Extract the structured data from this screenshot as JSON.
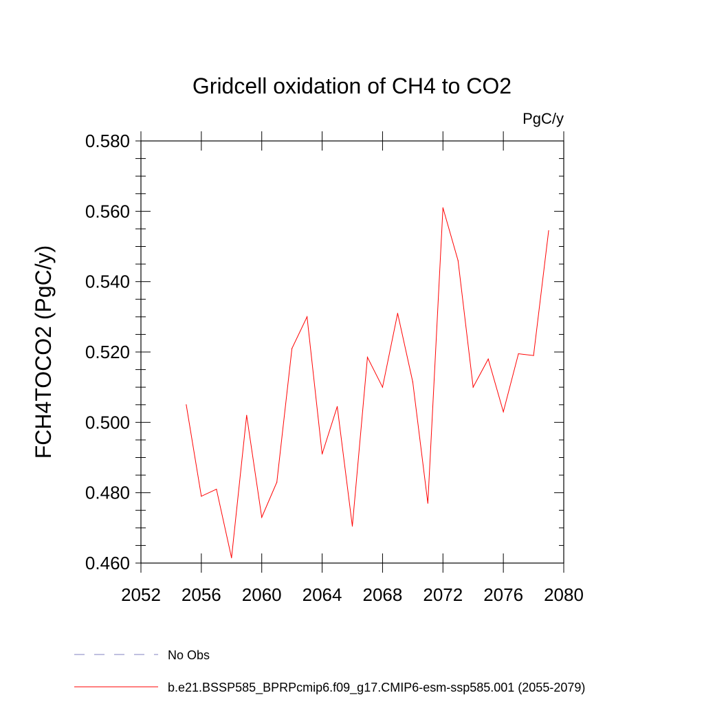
{
  "chart_data": {
    "type": "line",
    "title": "Gridcell oxidation of CH4 to CO2",
    "units_label": "PgC/y",
    "xlabel": "",
    "ylabel": "FCH4TOCO2  (PgC/y)",
    "xlim": [
      2052,
      2080
    ],
    "ylim": [
      0.46,
      0.58
    ],
    "x_ticks": [
      2052,
      2056,
      2060,
      2064,
      2068,
      2072,
      2076,
      2080
    ],
    "x_tick_labels": [
      "2052",
      "2056",
      "2060",
      "2064",
      "2068",
      "2072",
      "2076",
      "2080"
    ],
    "y_ticks": [
      0.46,
      0.48,
      0.5,
      0.52,
      0.54,
      0.56,
      0.58
    ],
    "y_tick_labels": [
      "0.460",
      "0.480",
      "0.500",
      "0.520",
      "0.540",
      "0.560",
      "0.580"
    ],
    "grid": false,
    "series": [
      {
        "name": "b.e21.BSSP585_BPRPcmip6.f09_g17.CMIP6-esm-ssp585.001 (2055-2079)",
        "color": "#ff0000",
        "style": "solid",
        "x": [
          2055,
          2056,
          2057,
          2058,
          2059,
          2060,
          2061,
          2062,
          2063,
          2064,
          2065,
          2066,
          2067,
          2068,
          2069,
          2070,
          2071,
          2072,
          2073,
          2074,
          2075,
          2076,
          2077,
          2078,
          2079
        ],
        "values": [
          0.505,
          0.479,
          0.481,
          0.4615,
          0.502,
          0.473,
          0.483,
          0.521,
          0.53,
          0.491,
          0.5045,
          0.4705,
          0.5185,
          0.51,
          0.531,
          0.5115,
          0.477,
          0.561,
          0.546,
          0.51,
          0.518,
          0.503,
          0.5195,
          0.519,
          0.5545
        ]
      }
    ],
    "legend": {
      "placement": "bottom",
      "entries": [
        {
          "label": "No Obs",
          "color": "#8080c0",
          "style": "dashed"
        },
        {
          "label": "b.e21.BSSP585_BPRPcmip6.f09_g17.CMIP6-esm-ssp585.001 (2055-2079)",
          "color": "#ff0000",
          "style": "solid"
        }
      ]
    }
  }
}
